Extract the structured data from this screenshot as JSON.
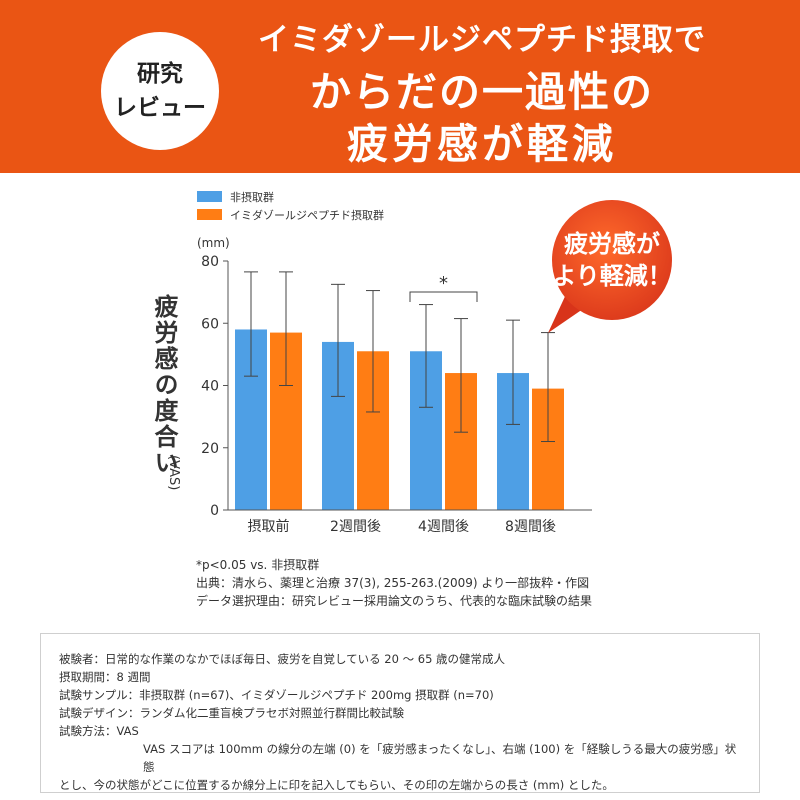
{
  "banner": {
    "badge_line1": "研究",
    "badge_line2": "レビュー",
    "headline_line1": "イミダゾールジペプチド摂取で",
    "headline_line2": "からだの一過性の",
    "headline_line3": "疲労感が軽減"
  },
  "callout": {
    "line1": "疲労感が",
    "line2": "より軽減！"
  },
  "colors": {
    "banner": "#ea5514",
    "series_control": "#4e9fe5",
    "series_treatment": "#ff7d14",
    "callout": "#e8441a"
  },
  "chart_data": {
    "type": "bar",
    "categories": [
      "摂取前",
      "2週間後",
      "4週間後",
      "8週間後"
    ],
    "series": [
      {
        "name": "非摂取群",
        "values": [
          58,
          54,
          51,
          44
        ],
        "err_low": [
          43,
          36.5,
          33,
          27.5
        ],
        "err_high": [
          76.5,
          72.5,
          66,
          61
        ]
      },
      {
        "name": "イミダゾールジペプチド摂取群",
        "values": [
          57,
          51,
          44,
          39
        ],
        "err_low": [
          40,
          31.5,
          25,
          22
        ],
        "err_high": [
          76.5,
          70.5,
          61.5,
          57
        ]
      }
    ],
    "ylim": [
      0,
      80
    ],
    "yticks": [
      0,
      20,
      40,
      60,
      80
    ],
    "ylabel": "疲労感の度合い",
    "ylabel_sub": "(VAS)",
    "yunit": "(mm)",
    "significance": {
      "marker": "*",
      "category": "4週間後"
    },
    "legend_position": "top-left",
    "grid": false
  },
  "notes": {
    "line1": "*p<0.05 vs. 非摂取群",
    "line2": "出典：清水ら、薬理と治療 37(3), 255-263.(2009) より一部抜粋・作図",
    "line3": "データ選択理由：研究レビュー採用論文のうち、代表的な臨床試験の結果"
  },
  "info": {
    "subjects": "被験者：日常的な作業のなかでほぼ毎日、疲労を自覚している 20 ～ 65 歳の健常成人",
    "period": "摂取期間：8 週間",
    "sample": "試験サンプル：非摂取群 (n=67)、イミダゾールジペプチド 200mg 摂取群 (n=70)",
    "design": "試験デザイン：ランダム化二重盲検プラセボ対照並行群間比較試験",
    "method": "試験方法：VAS",
    "method_detail1": "VAS スコアは 100mm の線分の左端 (0) を「疲労感まったくなし」、右端 (100) を「経験しうる最大の疲労感」状態",
    "method_detail2": "とし、今の状態がどこに位置するか線分上に印を記入してもらい、その印の左端からの長さ (mm) とした。"
  }
}
